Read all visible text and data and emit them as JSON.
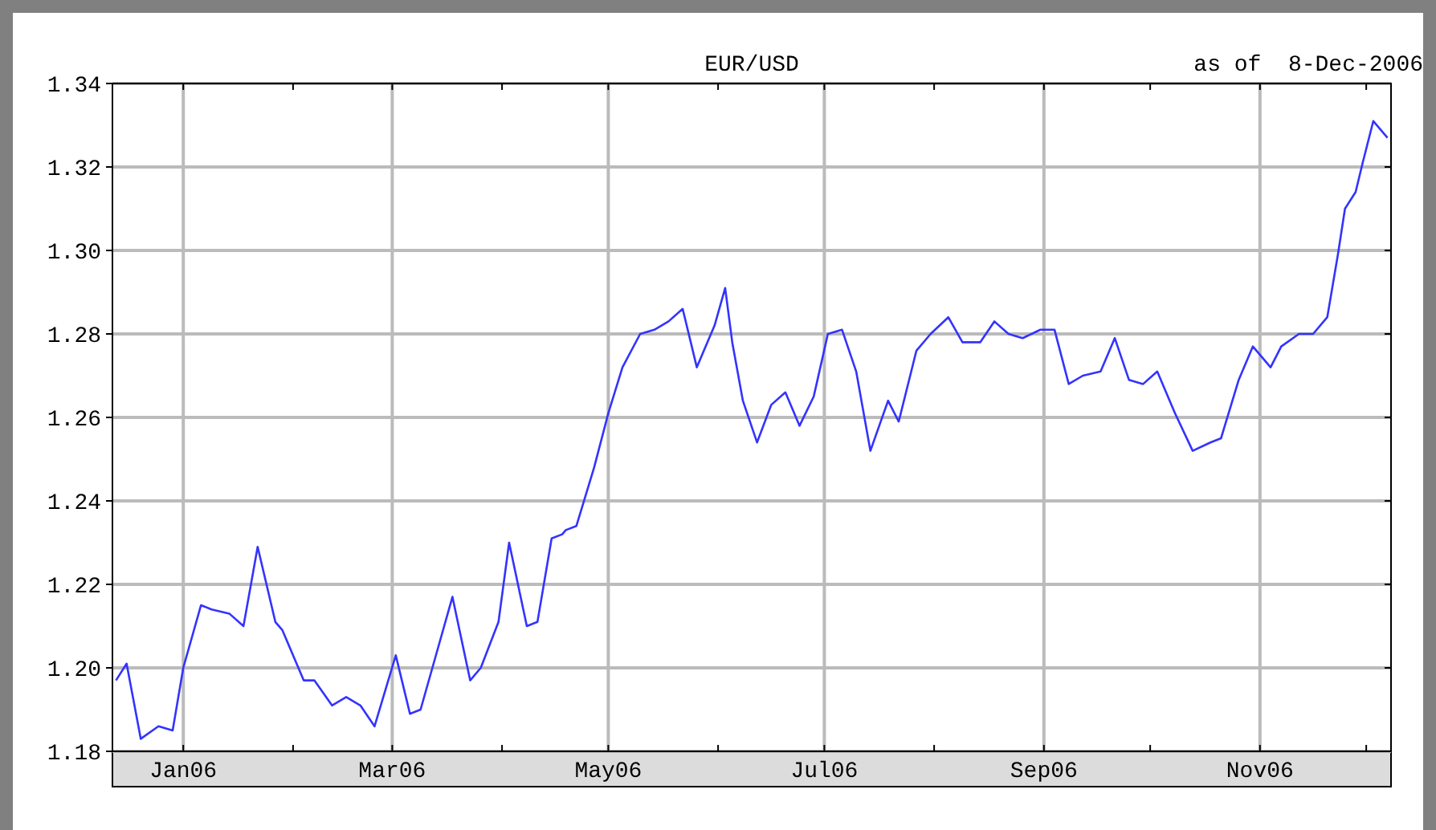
{
  "chart_data": {
    "type": "line",
    "title": "EUR/USD",
    "subtitle": "as of  8-Dec-2006",
    "x": [
      "2005-12-13",
      "2005-12-16",
      "2005-12-20",
      "2005-12-25",
      "2005-12-29",
      "2006-01-01",
      "2006-01-06",
      "2006-01-09",
      "2006-01-14",
      "2006-01-18",
      "2006-01-22",
      "2006-01-27",
      "2006-01-29",
      "2006-02-04",
      "2006-02-07",
      "2006-02-12",
      "2006-02-16",
      "2006-02-20",
      "2006-02-24",
      "2006-03-02",
      "2006-03-06",
      "2006-03-09",
      "2006-03-14",
      "2006-03-18",
      "2006-03-23",
      "2006-03-26",
      "2006-03-31",
      "2006-04-03",
      "2006-04-08",
      "2006-04-11",
      "2006-04-15",
      "2006-04-18",
      "2006-04-19",
      "2006-04-22",
      "2006-04-27",
      "2006-05-01",
      "2006-05-05",
      "2006-05-10",
      "2006-05-14",
      "2006-05-18",
      "2006-05-22",
      "2006-05-26",
      "2006-05-31",
      "2006-06-03",
      "2006-06-05",
      "2006-06-08",
      "2006-06-12",
      "2006-06-16",
      "2006-06-20",
      "2006-06-24",
      "2006-06-28",
      "2006-07-02",
      "2006-07-06",
      "2006-07-10",
      "2006-07-14",
      "2006-07-19",
      "2006-07-22",
      "2006-07-27",
      "2006-07-31",
      "2006-08-05",
      "2006-08-09",
      "2006-08-14",
      "2006-08-18",
      "2006-08-22",
      "2006-08-26",
      "2006-08-31",
      "2006-09-04",
      "2006-09-08",
      "2006-09-12",
      "2006-09-17",
      "2006-09-21",
      "2006-09-25",
      "2006-09-29",
      "2006-10-03",
      "2006-10-08",
      "2006-10-13",
      "2006-10-18",
      "2006-10-21",
      "2006-10-26",
      "2006-10-30",
      "2006-11-04",
      "2006-11-07",
      "2006-11-12",
      "2006-11-16",
      "2006-11-20",
      "2006-11-23",
      "2006-11-25",
      "2006-11-28",
      "2006-11-30",
      "2006-12-03",
      "2006-12-07"
    ],
    "series": [
      {
        "color": "#3333ff",
        "values": [
          1.197,
          1.201,
          1.183,
          1.186,
          1.185,
          1.2,
          1.215,
          1.214,
          1.213,
          1.21,
          1.229,
          1.211,
          1.209,
          1.197,
          1.197,
          1.191,
          1.193,
          1.191,
          1.186,
          1.203,
          1.189,
          1.19,
          1.205,
          1.217,
          1.197,
          1.2,
          1.211,
          1.23,
          1.21,
          1.211,
          1.231,
          1.232,
          1.233,
          1.234,
          1.248,
          1.261,
          1.272,
          1.28,
          1.281,
          1.283,
          1.286,
          1.272,
          1.282,
          1.291,
          1.278,
          1.264,
          1.254,
          1.263,
          1.266,
          1.258,
          1.265,
          1.28,
          1.281,
          1.271,
          1.252,
          1.264,
          1.259,
          1.276,
          1.28,
          1.284,
          1.278,
          1.278,
          1.283,
          1.28,
          1.279,
          1.281,
          1.281,
          1.268,
          1.27,
          1.271,
          1.279,
          1.269,
          1.268,
          1.271,
          1.261,
          1.252,
          1.254,
          1.255,
          1.269,
          1.277,
          1.272,
          1.277,
          1.28,
          1.28,
          1.284,
          1.299,
          1.31,
          1.314,
          1.321,
          1.331,
          1.327
        ]
      }
    ],
    "xlim": [
      "2005-12-12",
      "2006-12-08"
    ],
    "xticks": [
      {
        "value": "2006-01-01",
        "label": "Jan06"
      },
      {
        "value": "2006-02-01",
        "label": null
      },
      {
        "value": "2006-03-01",
        "label": "Mar06"
      },
      {
        "value": "2006-04-01",
        "label": null
      },
      {
        "value": "2006-05-01",
        "label": "May06"
      },
      {
        "value": "2006-06-01",
        "label": null
      },
      {
        "value": "2006-07-01",
        "label": "Jul06"
      },
      {
        "value": "2006-08-01",
        "label": null
      },
      {
        "value": "2006-09-01",
        "label": "Sep06"
      },
      {
        "value": "2006-10-01",
        "label": null
      },
      {
        "value": "2006-11-01",
        "label": "Nov06"
      },
      {
        "value": "2006-12-01",
        "label": null
      }
    ],
    "ylim": [
      1.18,
      1.34
    ],
    "yticks": [
      {
        "value": 1.18,
        "label": "1.18"
      },
      {
        "value": 1.2,
        "label": "1.20"
      },
      {
        "value": 1.22,
        "label": "1.22"
      },
      {
        "value": 1.24,
        "label": "1.24"
      },
      {
        "value": 1.26,
        "label": "1.26"
      },
      {
        "value": 1.28,
        "label": "1.28"
      },
      {
        "value": 1.3,
        "label": "1.30"
      },
      {
        "value": 1.32,
        "label": "1.32"
      },
      {
        "value": 1.34,
        "label": "1.34"
      }
    ],
    "grid": true,
    "marker": "none",
    "line_style": "solid"
  }
}
